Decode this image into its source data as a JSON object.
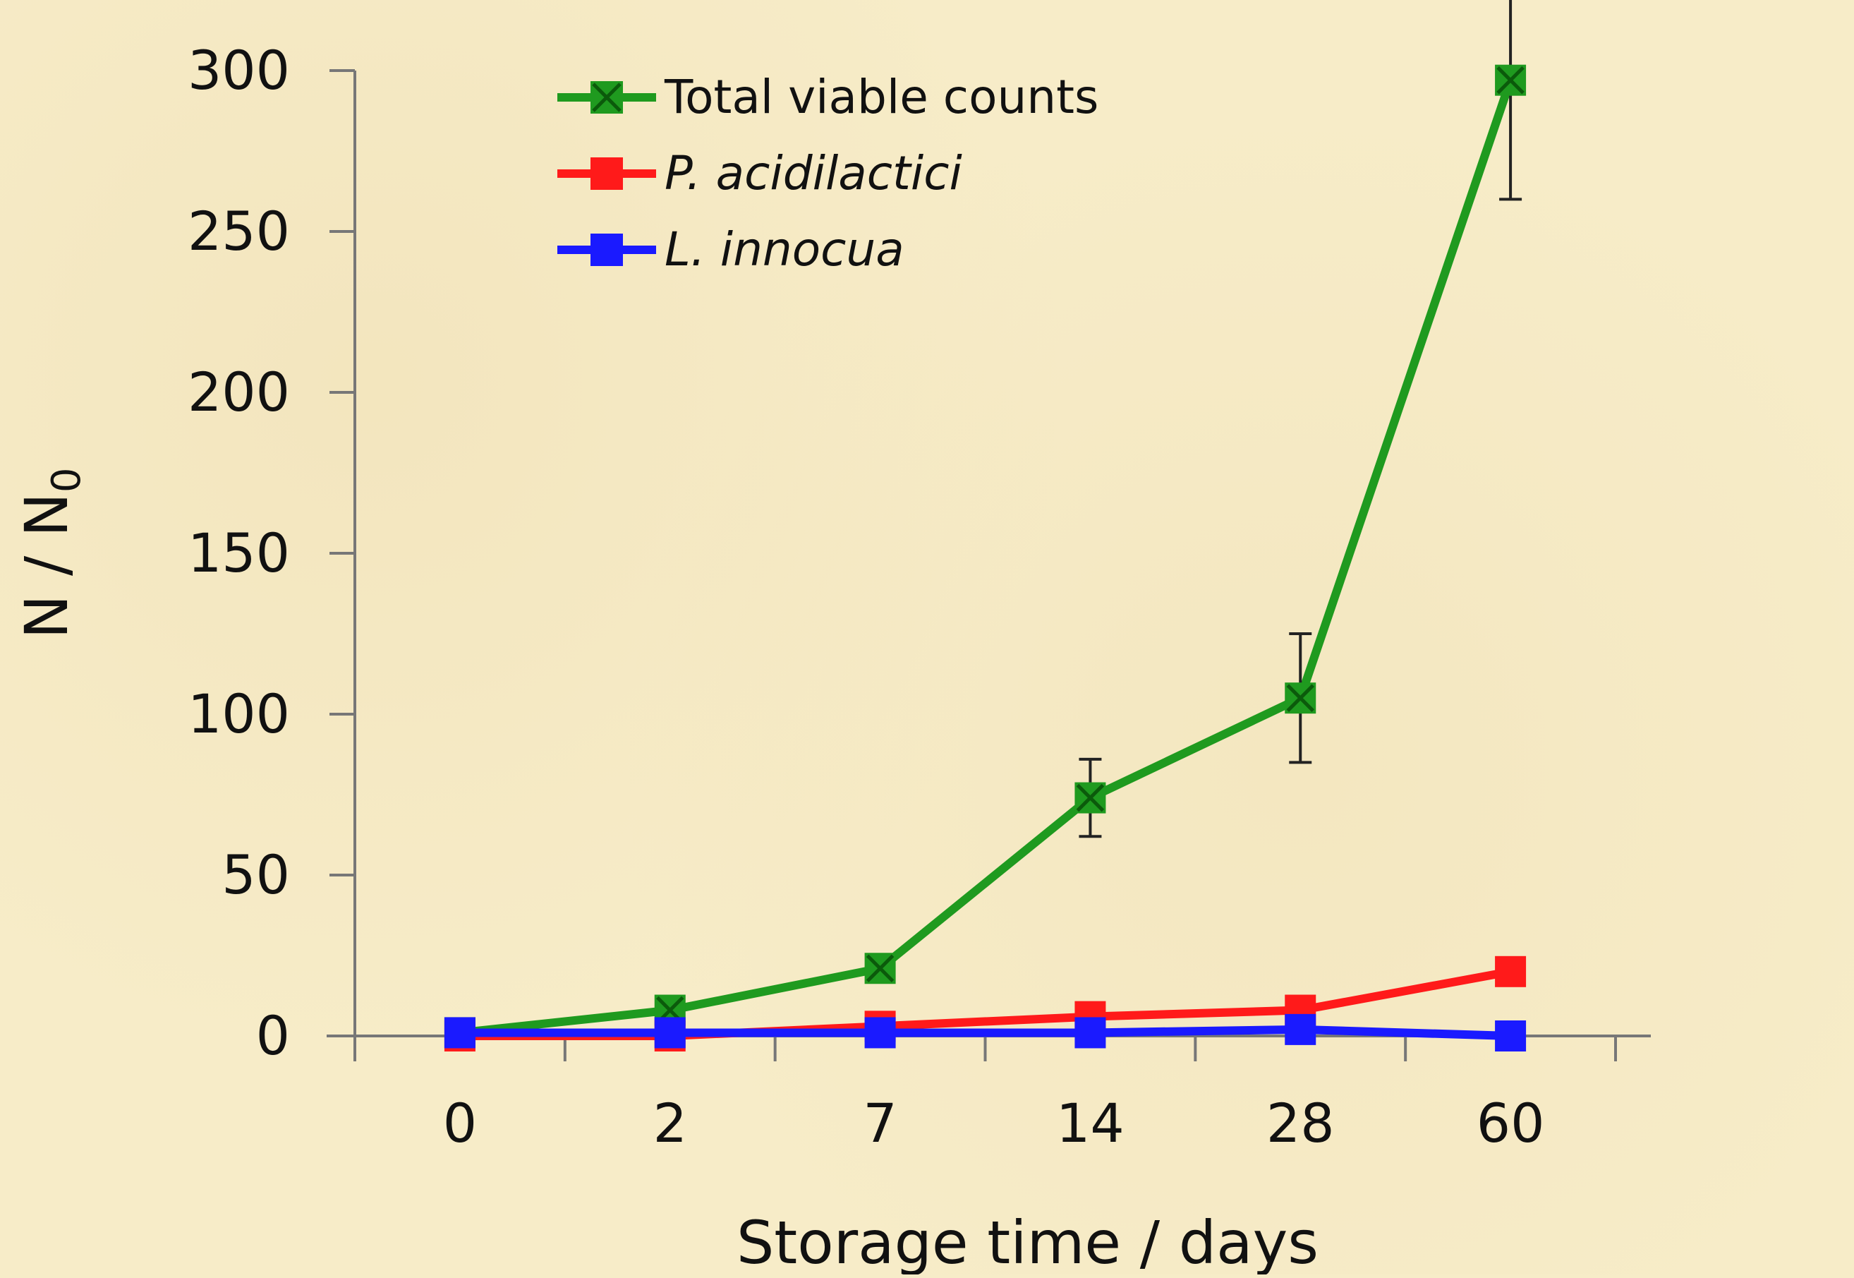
{
  "chart_data": {
    "type": "line",
    "xlabel": "Storage time / days",
    "ylabel": "N / N",
    "ylabel_subscript": "0",
    "categories": [
      "0",
      "2",
      "7",
      "14",
      "28",
      "60"
    ],
    "ylim": [
      0,
      300
    ],
    "yticks": [
      "0",
      "50",
      "100",
      "150",
      "200",
      "250",
      "300"
    ],
    "grid": false,
    "legend_position": "top-left",
    "series": [
      {
        "name": "Total viable counts",
        "color": "#1f9a1f",
        "marker": "square-x",
        "italic": false,
        "values": [
          1,
          8,
          21,
          74,
          105,
          297
        ],
        "error": [
          null,
          null,
          null,
          12,
          20,
          37
        ]
      },
      {
        "name": "P. acidilactici",
        "color": "#ff1a1a",
        "marker": "square",
        "italic": true,
        "values": [
          0,
          0,
          3,
          6,
          8,
          20
        ],
        "error": [
          null,
          null,
          null,
          null,
          null,
          null
        ]
      },
      {
        "name": "L. innocua",
        "color": "#1a1aff",
        "marker": "square",
        "italic": true,
        "values": [
          1,
          1,
          1,
          1,
          2,
          0
        ],
        "error": [
          null,
          null,
          null,
          null,
          null,
          null
        ]
      }
    ]
  }
}
